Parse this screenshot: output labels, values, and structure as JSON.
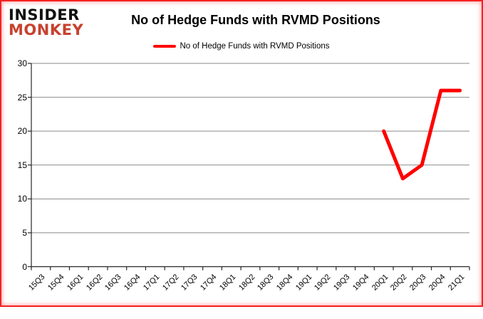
{
  "logo": {
    "top": "INSIDER",
    "bottom": "MONKEY"
  },
  "title": "No of Hedge Funds with RVMD Positions",
  "legend": {
    "label": "No of Hedge Funds with RVMD Positions"
  },
  "chart_data": {
    "type": "line",
    "title": "No of Hedge Funds with RVMD Positions",
    "categories": [
      "15Q3",
      "15Q4",
      "16Q1",
      "16Q2",
      "16Q3",
      "16Q4",
      "17Q1",
      "17Q2",
      "17Q3",
      "17Q4",
      "18Q1",
      "18Q2",
      "18Q3",
      "18Q4",
      "19Q1",
      "19Q2",
      "19Q3",
      "19Q4",
      "20Q1",
      "20Q2",
      "20Q3",
      "20Q4",
      "21Q1"
    ],
    "series": [
      {
        "name": "No of Hedge Funds with RVMD Positions",
        "color": "#FF0000",
        "values": [
          null,
          null,
          null,
          null,
          null,
          null,
          null,
          null,
          null,
          null,
          null,
          null,
          null,
          null,
          null,
          null,
          null,
          null,
          20,
          13,
          15,
          26,
          26
        ]
      }
    ],
    "xlabel": "",
    "ylabel": "",
    "ylim": [
      0,
      30
    ],
    "yticks": [
      0,
      5,
      10,
      15,
      20,
      25,
      30
    ],
    "grid": true,
    "legend_position": "top-center"
  },
  "colors": {
    "series_red": "#FF0000",
    "logo_black": "#111111",
    "logo_red": "#C7412F",
    "gridline": "#8A8A8A",
    "axis": "#262626",
    "frame_red": "#F52222",
    "background": "#FFFFFF"
  }
}
